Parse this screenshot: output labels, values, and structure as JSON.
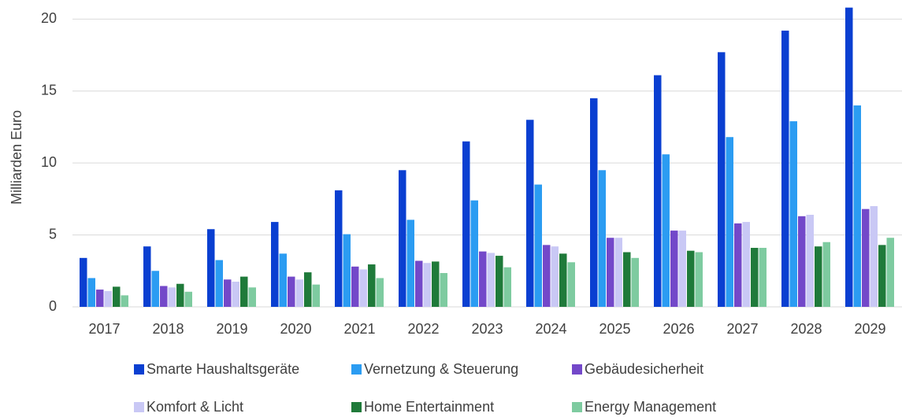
{
  "chart_data": {
    "type": "bar",
    "y_label": "Milliarden Euro",
    "categories": [
      "2017",
      "2018",
      "2019",
      "2020",
      "2021",
      "2022",
      "2023",
      "2024",
      "2025",
      "2026",
      "2027",
      "2028",
      "2029"
    ],
    "series": [
      {
        "name": "Smarte Haushaltsgeräte",
        "color": "#0a3fd1",
        "values": [
          3.4,
          4.2,
          5.4,
          5.9,
          8.1,
          9.5,
          11.5,
          13.0,
          14.5,
          16.1,
          17.7,
          19.2,
          20.8
        ]
      },
      {
        "name": "Vernetzung & Steuerung",
        "color": "#2b9cf2",
        "values": [
          2.0,
          2.5,
          3.25,
          3.7,
          5.05,
          6.05,
          7.4,
          8.5,
          9.5,
          10.6,
          11.8,
          12.9,
          14.0
        ]
      },
      {
        "name": "Gebäudesicherheit",
        "color": "#7348c9",
        "values": [
          1.2,
          1.45,
          1.9,
          2.1,
          2.8,
          3.2,
          3.85,
          4.3,
          4.8,
          5.3,
          5.8,
          6.3,
          6.8
        ]
      },
      {
        "name": "Komfort & Licht",
        "color": "#c9c8f5",
        "values": [
          1.1,
          1.35,
          1.75,
          1.9,
          2.6,
          3.05,
          3.75,
          4.2,
          4.8,
          5.3,
          5.9,
          6.4,
          7.0
        ]
      },
      {
        "name": "Home Entertainment",
        "color": "#1f7a3a",
        "values": [
          1.4,
          1.6,
          2.1,
          2.4,
          2.95,
          3.15,
          3.55,
          3.7,
          3.8,
          3.9,
          4.1,
          4.2,
          4.3
        ]
      },
      {
        "name": "Energy Management",
        "color": "#7ecba0",
        "values": [
          0.8,
          1.05,
          1.35,
          1.55,
          2.0,
          2.35,
          2.75,
          3.1,
          3.4,
          3.8,
          4.1,
          4.5,
          4.8
        ]
      }
    ],
    "ylim": [
      0,
      21
    ],
    "yticks": [
      0,
      5,
      10,
      15,
      20
    ],
    "grid": true,
    "legend": "bottom"
  }
}
